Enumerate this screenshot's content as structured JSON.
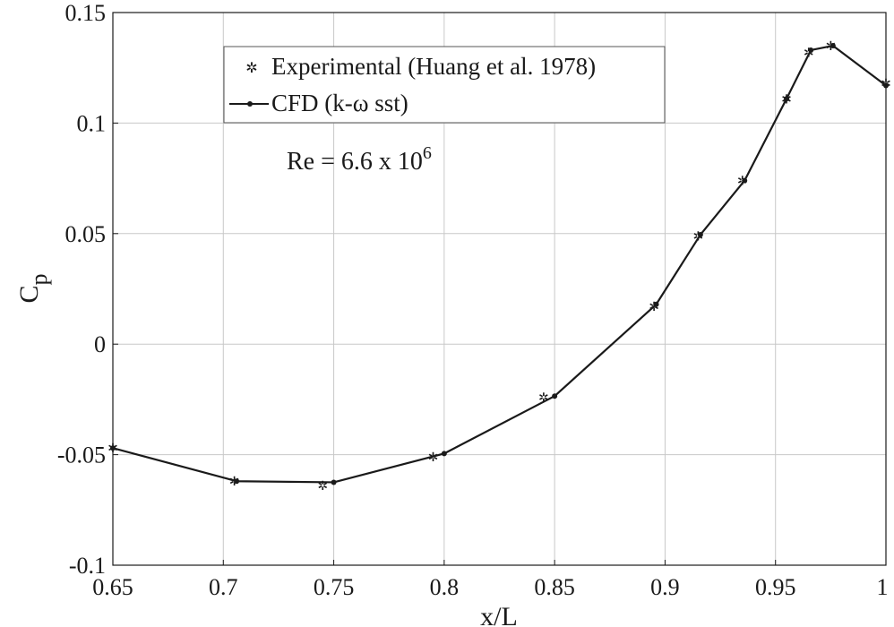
{
  "chart_data": {
    "type": "line",
    "title": "",
    "xlabel": "x/L",
    "ylabel": "C",
    "ylabel_subscript": "p",
    "xlim": [
      0.65,
      1.0
    ],
    "ylim": [
      -0.1,
      0.15
    ],
    "grid": true,
    "legend_position": "top-left",
    "x_ticks": [
      0.65,
      0.7,
      0.75,
      0.8,
      0.85,
      0.9,
      0.95,
      1.0
    ],
    "x_tick_labels": [
      "0.65",
      "0.7",
      "0.75",
      "0.8",
      "0.85",
      "0.9",
      "0.95",
      "1"
    ],
    "y_ticks": [
      -0.1,
      -0.05,
      0,
      0.05,
      0.1,
      0.15
    ],
    "y_tick_labels": [
      "-0.1",
      "-0.05",
      "0",
      "0.05",
      "0.1",
      "0.15"
    ],
    "annotation": {
      "text": "Re = 6.6 x 10",
      "superscript": "6"
    },
    "series": [
      {
        "name": "Experimental (Huang et al. 1978)",
        "style": "markers",
        "marker": "star",
        "color": "#888888",
        "x": [
          0.65,
          0.705,
          0.745,
          0.795,
          0.845,
          0.895,
          0.915,
          0.935,
          0.955,
          0.965,
          0.975,
          1.0
        ],
        "y": [
          -0.047,
          -0.062,
          -0.064,
          -0.051,
          -0.024,
          0.017,
          0.049,
          0.074,
          0.111,
          0.132,
          0.135,
          0.118
        ]
      },
      {
        "name": "CFD (k-ω sst)",
        "style": "line-dot",
        "marker": "dot",
        "color": "#1a1a1a",
        "x": [
          0.65,
          0.706,
          0.75,
          0.8,
          0.85,
          0.896,
          0.916,
          0.936,
          0.955,
          0.966,
          0.976,
          1.0
        ],
        "y": [
          -0.047,
          -0.062,
          -0.0625,
          -0.0495,
          -0.0235,
          0.018,
          0.0495,
          0.074,
          0.111,
          0.133,
          0.135,
          0.117
        ]
      }
    ]
  }
}
